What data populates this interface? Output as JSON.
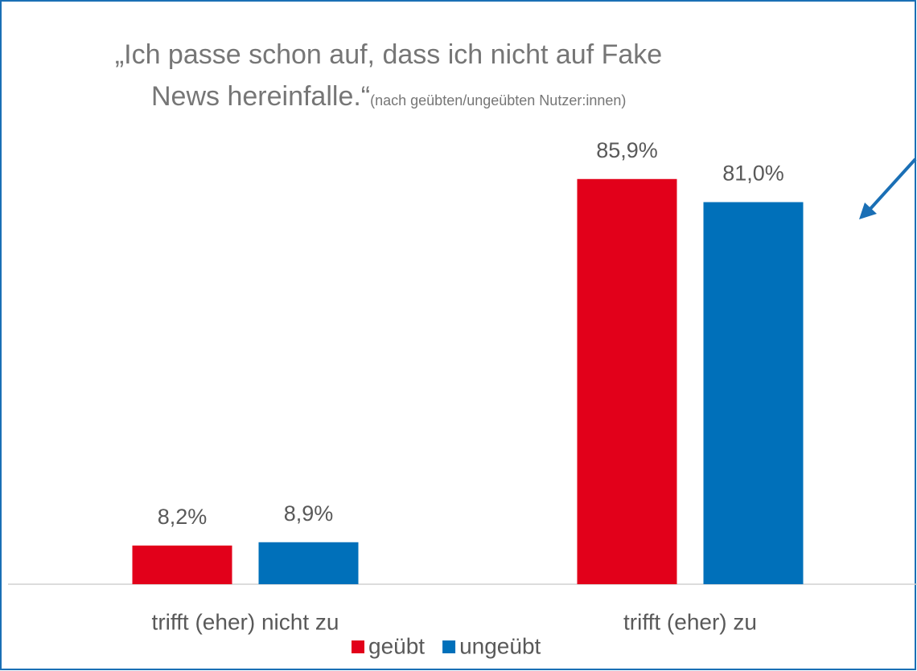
{
  "chart_data": {
    "type": "bar",
    "title": [
      "„Ich passe schon auf, dass ich nicht auf Fake",
      "News hereinfalle.“"
    ],
    "subtitle": "(nach geübten/ungeübten Nutzer:innen)",
    "categories": [
      "trifft (eher) nicht zu",
      "trifft (eher) zu"
    ],
    "series": [
      {
        "name": "geübt",
        "color": "#e2001a",
        "values": [
          8.2,
          85.9
        ],
        "value_labels": [
          "8,2%",
          "85,9%"
        ]
      },
      {
        "name": "ungeübt",
        "color": "#0070ba",
        "values": [
          8.9,
          81.0
        ],
        "value_labels": [
          "8,9%",
          "81,0%"
        ]
      }
    ],
    "ylim": [
      0,
      100
    ]
  }
}
